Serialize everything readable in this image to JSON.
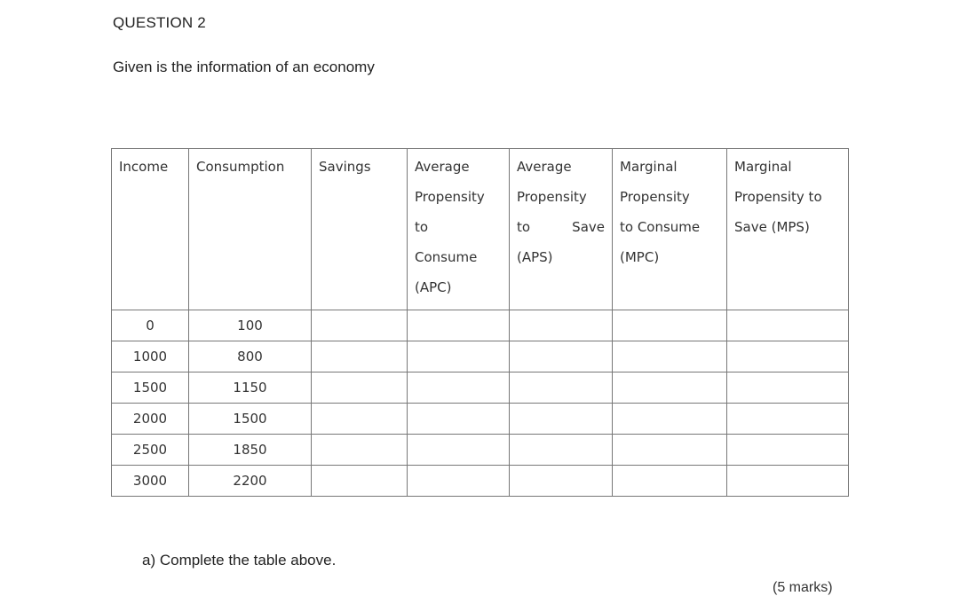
{
  "question": {
    "title": "QUESTION 2",
    "intro": "Given is the information of an economy"
  },
  "table": {
    "headers": {
      "income": "Income",
      "consumption": "Consumption",
      "savings": "Savings",
      "apc": [
        "Average",
        "Propensity",
        "to",
        "Consume",
        "(APC)"
      ],
      "aps": [
        "Average",
        "Propensity",
        "to",
        "Save",
        "(APS)"
      ],
      "mpc": [
        "Marginal",
        "Propensity",
        "to Consume",
        "(MPC)"
      ],
      "mps": [
        "Marginal",
        "Propensity to",
        "Save (MPS)"
      ]
    },
    "rows": [
      {
        "income": "0",
        "consumption": "100",
        "savings": "",
        "apc": "",
        "aps": "",
        "mpc": "",
        "mps": ""
      },
      {
        "income": "1000",
        "consumption": "800",
        "savings": "",
        "apc": "",
        "aps": "",
        "mpc": "",
        "mps": ""
      },
      {
        "income": "1500",
        "consumption": "1150",
        "savings": "",
        "apc": "",
        "aps": "",
        "mpc": "",
        "mps": ""
      },
      {
        "income": "2000",
        "consumption": "1500",
        "savings": "",
        "apc": "",
        "aps": "",
        "mpc": "",
        "mps": ""
      },
      {
        "income": "2500",
        "consumption": "1850",
        "savings": "",
        "apc": "",
        "aps": "",
        "mpc": "",
        "mps": ""
      },
      {
        "income": "3000",
        "consumption": "2200",
        "savings": "",
        "apc": "",
        "aps": "",
        "mpc": "",
        "mps": ""
      }
    ]
  },
  "part_a": {
    "text": "a)  Complete the table above.",
    "marks": "(5 marks)"
  }
}
